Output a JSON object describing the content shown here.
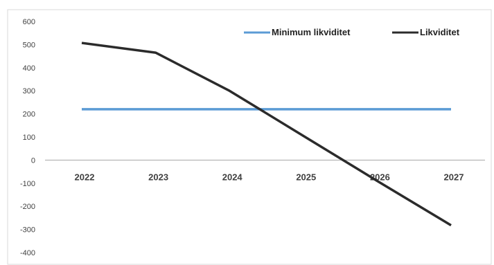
{
  "chart_data": {
    "type": "line",
    "categories": [
      "2022",
      "2023",
      "2024",
      "2025",
      "2026",
      "2027"
    ],
    "ylim": [
      -400,
      600
    ],
    "yticks": [
      600,
      500,
      400,
      300,
      200,
      100,
      0,
      -100,
      -200,
      -300,
      -400
    ],
    "grid": false,
    "legend_position": "top-right",
    "series": [
      {
        "name": "Minimum likviditet",
        "color": "#5b9bd5",
        "values": [
          220,
          220,
          220,
          220,
          220,
          220
        ]
      },
      {
        "name": "Likviditet",
        "color": "#2b2b2b",
        "values": [
          507,
          465,
          300,
          105,
          -90,
          -282
        ]
      }
    ]
  }
}
